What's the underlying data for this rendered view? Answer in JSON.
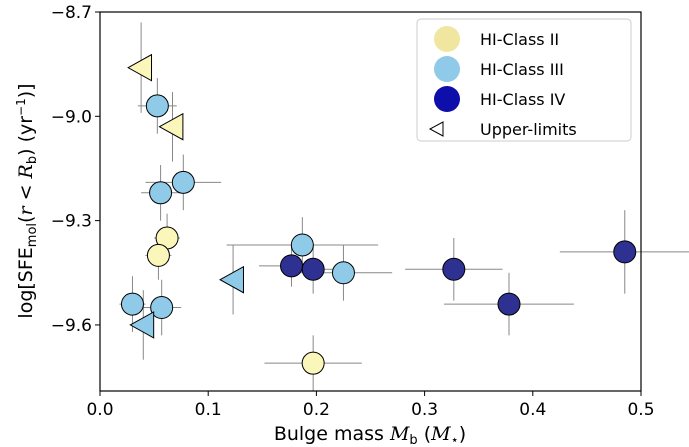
{
  "chart_data": {
    "type": "scatter",
    "xlabel": "Bulge mass M_b (M_⋆)",
    "ylabel": "log[SFE_mol(r < R_b) (yr^-1)]",
    "xlim": [
      0.0,
      0.5
    ],
    "ylim": [
      -9.79,
      -8.7
    ],
    "xticks": [
      "0.0",
      "0.1",
      "0.2",
      "0.3",
      "0.4",
      "0.5"
    ],
    "yticks": [
      "-8.7",
      "-9.0",
      "-9.3",
      "-9.6"
    ],
    "legend_position": "top-right",
    "series": [
      {
        "name": "HI-Class II",
        "color": "#fbf6b9",
        "marker": "circle",
        "points": [
          {
            "x": 0.062,
            "y": -9.35,
            "xerr": 0.012,
            "yerr": 0.07
          },
          {
            "x": 0.054,
            "y": -9.4,
            "xerr": 0.012,
            "yerr": 0.07
          },
          {
            "x": 0.197,
            "y": -9.71,
            "xerr": 0.045,
            "yerr": 0.08
          }
        ]
      },
      {
        "name": "HI-Class III",
        "color": "#8fcbe8",
        "marker": "circle",
        "points": [
          {
            "x": 0.053,
            "y": -8.97,
            "xerr": 0.018,
            "yerr": 0.08
          },
          {
            "x": 0.077,
            "y": -9.19,
            "xerr": 0.035,
            "yerr": 0.08
          },
          {
            "x": 0.056,
            "y": -9.22,
            "xerr": 0.018,
            "yerr": 0.08
          },
          {
            "x": 0.187,
            "y": -9.37,
            "xerr": 0.07,
            "yerr": 0.08
          },
          {
            "x": 0.225,
            "y": -9.45,
            "xerr": 0.045,
            "yerr": 0.08
          },
          {
            "x": 0.03,
            "y": -9.54,
            "xerr": 0.012,
            "yerr": 0.08
          },
          {
            "x": 0.057,
            "y": -9.55,
            "xerr": 0.018,
            "yerr": 0.08
          }
        ]
      },
      {
        "name": "HI-Class IV",
        "color": "#2e3192",
        "marker": "circle",
        "points": [
          {
            "x": 0.177,
            "y": -9.43,
            "xerr": 0.03,
            "yerr": 0.06
          },
          {
            "x": 0.197,
            "y": -9.44,
            "xerr": 0.03,
            "yerr": 0.07
          },
          {
            "x": 0.327,
            "y": -9.44,
            "xerr": 0.045,
            "yerr": 0.09
          },
          {
            "x": 0.378,
            "y": -9.54,
            "xerr": 0.06,
            "yerr": 0.09
          },
          {
            "x": 0.485,
            "y": -9.39,
            "xerr": 0.06,
            "yerr": 0.12
          }
        ]
      },
      {
        "name": "Upper-limits",
        "marker": "triangle-left",
        "points": [
          {
            "x": 0.038,
            "y": -8.86,
            "color": "#fbf6b9",
            "yerr": 0.13
          },
          {
            "x": 0.067,
            "y": -9.03,
            "color": "#fbf6b9",
            "yerr": 0.1
          },
          {
            "x": 0.123,
            "y": -9.47,
            "color": "#8fcbe8",
            "yerr": 0.1
          },
          {
            "x": 0.04,
            "y": -9.6,
            "color": "#8fcbe8",
            "yerr": 0.1
          }
        ]
      }
    ],
    "legend": [
      {
        "label": "HI-Class II",
        "color": "#f0e6a0",
        "marker": "circle"
      },
      {
        "label": "HI-Class III",
        "color": "#8fcbe8",
        "marker": "circle"
      },
      {
        "label": "HI-Class IV",
        "color": "#0e0eaa",
        "marker": "circle"
      },
      {
        "label": "Upper-limits",
        "color": "#ffffff",
        "marker": "triangle-left"
      }
    ]
  }
}
